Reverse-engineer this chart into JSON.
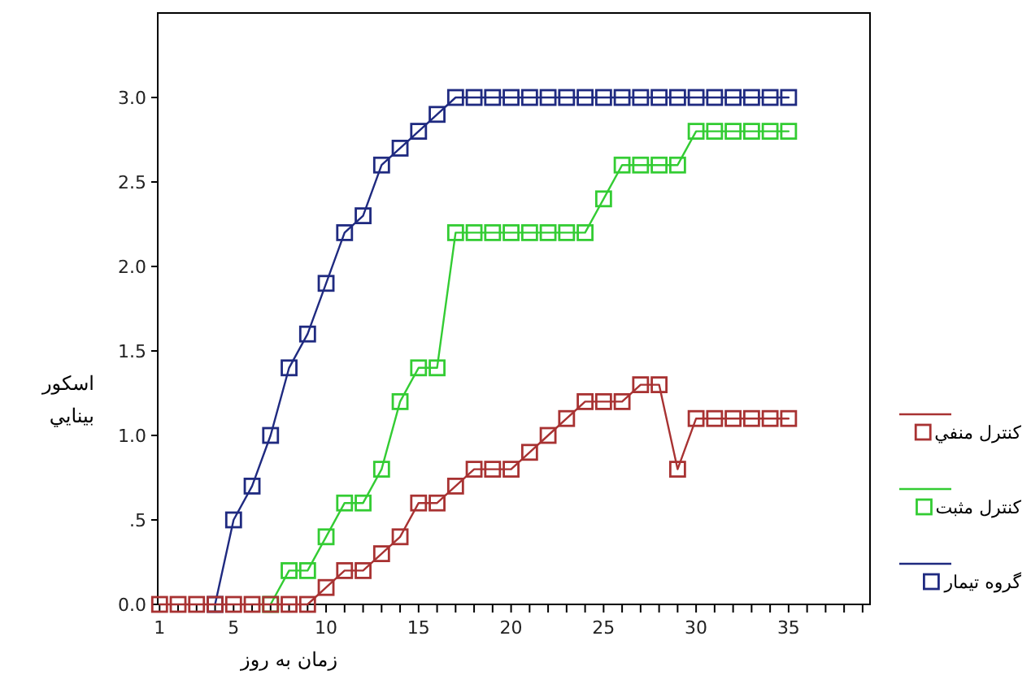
{
  "chart_data": {
    "type": "line",
    "xlabel": "زمان به روز",
    "ylabel": "اسكور بينايي",
    "marker": "square",
    "line_style": "solid",
    "legend": "right",
    "grid": false,
    "x": [
      1,
      2,
      3,
      4,
      5,
      6,
      7,
      8,
      9,
      10,
      11,
      12,
      13,
      14,
      15,
      16,
      17,
      18,
      19,
      20,
      21,
      22,
      23,
      24,
      25,
      26,
      27,
      28,
      29,
      30,
      31,
      32,
      33,
      34,
      35
    ],
    "xlim": [
      0.9,
      39.4
    ],
    "ylim": [
      0,
      3.5
    ],
    "xticks": [
      {
        "value": 1,
        "label": "1"
      },
      {
        "value": 2,
        "label": null
      },
      {
        "value": 3,
        "label": null
      },
      {
        "value": 4,
        "label": null
      },
      {
        "value": 5,
        "label": "5"
      },
      {
        "value": 6,
        "label": null
      },
      {
        "value": 7,
        "label": null
      },
      {
        "value": 8,
        "label": null
      },
      {
        "value": 9,
        "label": null
      },
      {
        "value": 10,
        "label": "10"
      },
      {
        "value": 11,
        "label": null
      },
      {
        "value": 12,
        "label": null
      },
      {
        "value": 13,
        "label": null
      },
      {
        "value": 14,
        "label": null
      },
      {
        "value": 15,
        "label": "15"
      },
      {
        "value": 16,
        "label": null
      },
      {
        "value": 17,
        "label": null
      },
      {
        "value": 18,
        "label": null
      },
      {
        "value": 19,
        "label": null
      },
      {
        "value": 20,
        "label": "20"
      },
      {
        "value": 21,
        "label": null
      },
      {
        "value": 22,
        "label": null
      },
      {
        "value": 23,
        "label": null
      },
      {
        "value": 24,
        "label": null
      },
      {
        "value": 25,
        "label": "25"
      },
      {
        "value": 26,
        "label": null
      },
      {
        "value": 27,
        "label": null
      },
      {
        "value": 28,
        "label": null
      },
      {
        "value": 29,
        "label": null
      },
      {
        "value": 30,
        "label": "30"
      },
      {
        "value": 31,
        "label": null
      },
      {
        "value": 32,
        "label": null
      },
      {
        "value": 33,
        "label": null
      },
      {
        "value": 34,
        "label": null
      },
      {
        "value": 35,
        "label": "35"
      },
      {
        "value": 36,
        "label": null
      },
      {
        "value": 37,
        "label": null
      },
      {
        "value": 38,
        "label": null
      },
      {
        "value": 39,
        "label": null
      }
    ],
    "yticks": [
      {
        "value": 0,
        "label": "0.0"
      },
      {
        "value": 0.5,
        "label": ".5"
      },
      {
        "value": 1,
        "label": "1.0"
      },
      {
        "value": 1.5,
        "label": "1.5"
      },
      {
        "value": 2,
        "label": "2.0"
      },
      {
        "value": 2.5,
        "label": "2.5"
      },
      {
        "value": 3,
        "label": "3.0"
      }
    ],
    "series": [
      {
        "name": "كنترل منفي",
        "color": "#a83232",
        "values": [
          0,
          0,
          0,
          0,
          0,
          0,
          0,
          0,
          0,
          0.1,
          0.2,
          0.2,
          0.3,
          0.4,
          0.6,
          0.6,
          0.7,
          0.8,
          0.8,
          0.8,
          0.9,
          1.0,
          1.1,
          1.2,
          1.2,
          1.2,
          1.3,
          1.3,
          0.8,
          1.1,
          1.1,
          1.1,
          1.1,
          1.1,
          1.1
        ]
      },
      {
        "name": "كنترل مثبت",
        "color": "#33cc33",
        "values": [
          null,
          null,
          null,
          null,
          null,
          null,
          0,
          0.2,
          0.2,
          0.4,
          0.6,
          0.6,
          0.8,
          1.2,
          1.4,
          1.4,
          2.2,
          2.2,
          2.2,
          2.2,
          2.2,
          2.2,
          2.2,
          2.2,
          2.4,
          2.6,
          2.6,
          2.6,
          2.6,
          2.8,
          2.8,
          2.8,
          2.8,
          2.8,
          2.8
        ]
      },
      {
        "name": "گروه تيمار",
        "color": "#1f2a80",
        "values": [
          null,
          null,
          null,
          0,
          0.5,
          0.7,
          1.0,
          1.4,
          1.6,
          1.9,
          2.2,
          2.3,
          2.6,
          2.7,
          2.8,
          2.9,
          3.0,
          3.0,
          3.0,
          3.0,
          3.0,
          3.0,
          3.0,
          3.0,
          3.0,
          3.0,
          3.0,
          3.0,
          3.0,
          3.0,
          3.0,
          3.0,
          3.0,
          3.0,
          3.0
        ]
      }
    ]
  }
}
